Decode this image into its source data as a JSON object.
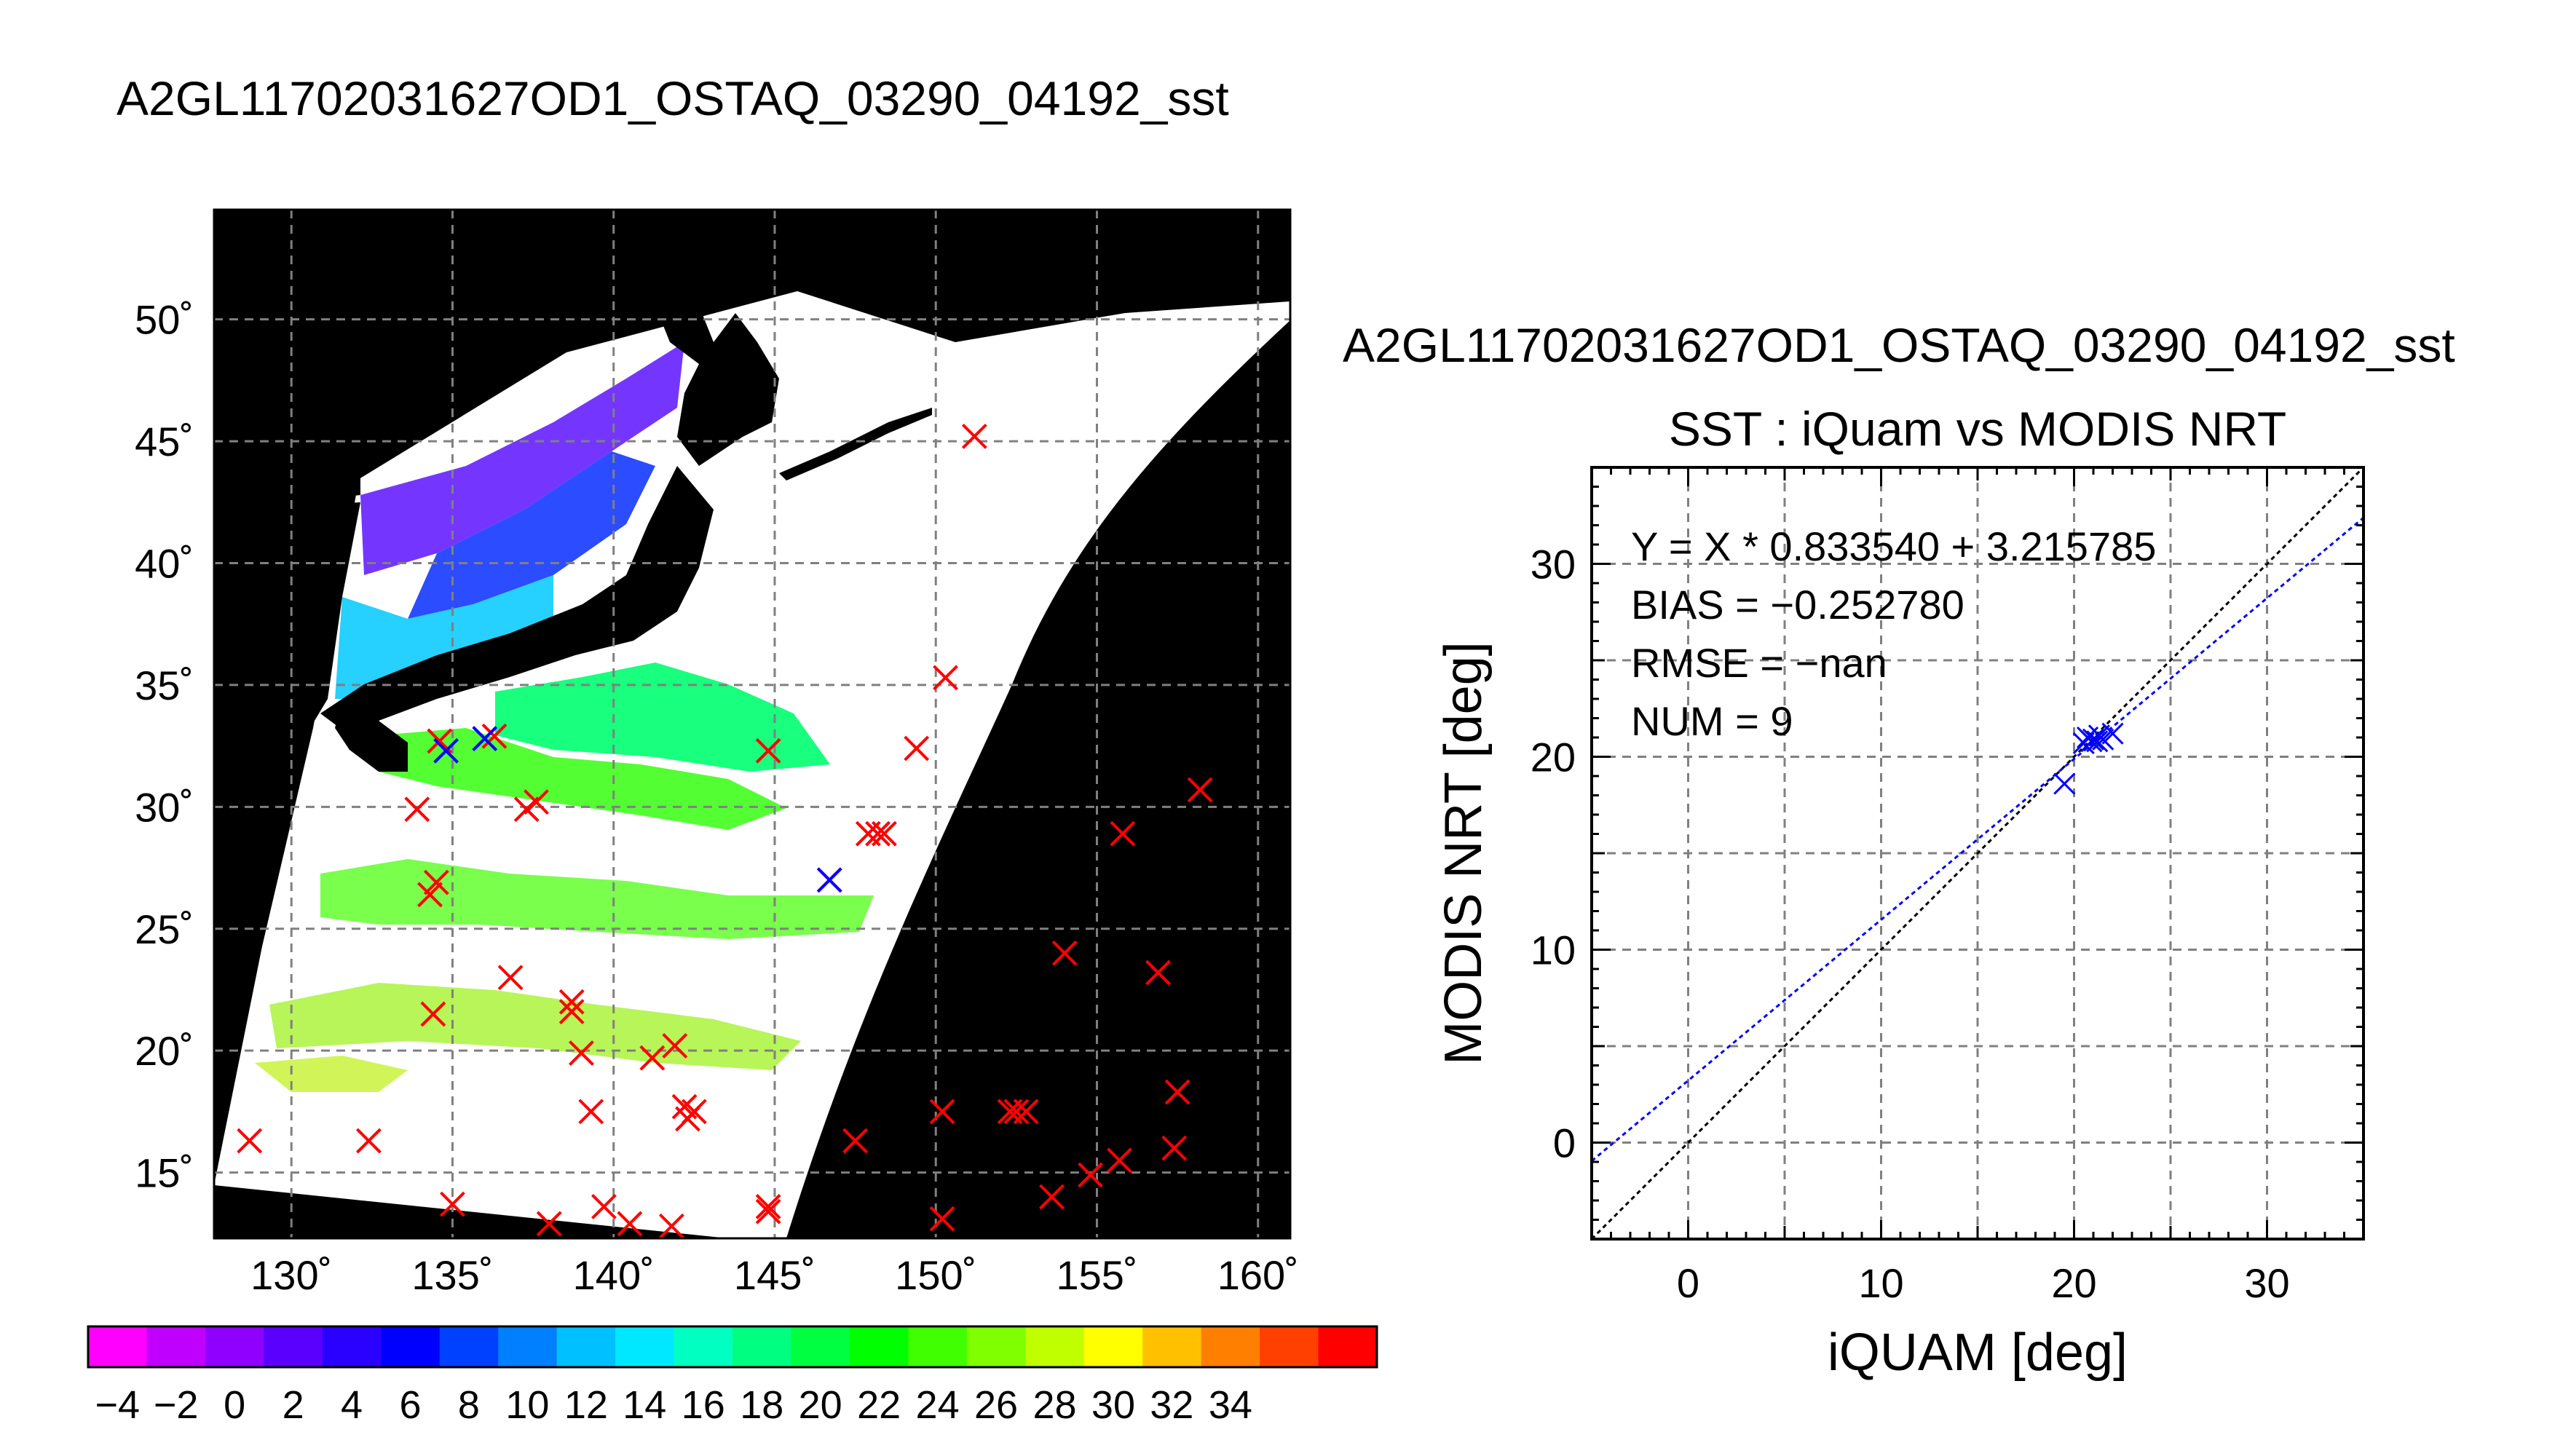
{
  "main_title": "A2GL11702031627OD1_OSTAQ_03290_04192_sst",
  "chart_data": [
    {
      "type": "scatter",
      "subtype": "map",
      "lon_ticks": [
        "130˚",
        "135˚",
        "140˚",
        "145˚",
        "150˚",
        "155˚",
        "160˚"
      ],
      "lon_tick_values": [
        130,
        135,
        140,
        145,
        150,
        155,
        160
      ],
      "lat_ticks": [
        "50˚",
        "45˚",
        "40˚",
        "35˚",
        "30˚",
        "25˚",
        "20˚",
        "15˚"
      ],
      "lat_tick_values": [
        50,
        45,
        40,
        35,
        30,
        25,
        20,
        15
      ],
      "xlim": [
        127.6,
        161.0
      ],
      "ylim": [
        12.3,
        54.5
      ],
      "grid": true,
      "red_markers": [
        [
          128.7,
          16.3
        ],
        [
          132.4,
          16.3
        ],
        [
          133.9,
          29.9
        ],
        [
          134.6,
          32.7
        ],
        [
          134.5,
          26.9
        ],
        [
          134.3,
          26.4
        ],
        [
          134.4,
          21.5
        ],
        [
          135.0,
          13.7
        ],
        [
          136.3,
          32.9
        ],
        [
          136.8,
          23.0
        ],
        [
          137.3,
          29.9
        ],
        [
          137.6,
          30.2
        ],
        [
          138.0,
          12.9
        ],
        [
          138.7,
          22.0
        ],
        [
          138.7,
          21.6
        ],
        [
          139.0,
          19.9
        ],
        [
          139.3,
          17.5
        ],
        [
          139.7,
          13.6
        ],
        [
          140.5,
          12.9
        ],
        [
          141.2,
          19.7
        ],
        [
          141.9,
          20.2
        ],
        [
          141.8,
          12.8
        ],
        [
          142.2,
          17.7
        ],
        [
          142.3,
          17.2
        ],
        [
          142.5,
          17.5
        ],
        [
          144.8,
          32.3
        ],
        [
          144.8,
          13.6
        ],
        [
          144.8,
          13.4
        ],
        [
          146.7,
          27.0
        ],
        [
          147.5,
          16.3
        ],
        [
          147.9,
          28.9
        ],
        [
          148.2,
          28.9
        ],
        [
          148.4,
          28.9
        ],
        [
          149.4,
          32.4
        ],
        [
          150.2,
          17.5
        ],
        [
          150.2,
          13.1
        ],
        [
          150.3,
          35.3
        ],
        [
          151.2,
          45.2
        ],
        [
          152.3,
          17.5
        ],
        [
          152.5,
          17.5
        ],
        [
          152.8,
          17.5
        ],
        [
          153.6,
          14.0
        ],
        [
          154.0,
          24.0
        ],
        [
          154.8,
          14.9
        ],
        [
          155.7,
          15.5
        ],
        [
          155.8,
          28.9
        ],
        [
          156.9,
          23.2
        ],
        [
          157.4,
          16.0
        ],
        [
          157.5,
          18.3
        ],
        [
          158.2,
          30.7
        ]
      ],
      "blue_markers": [
        [
          134.8,
          32.3
        ],
        [
          136.0,
          32.8
        ],
        [
          146.7,
          27.0
        ]
      ]
    },
    {
      "type": "scatter",
      "title": "A2GL11702031627OD1_OSTAQ_03290_04192_sst",
      "subtitle": "SST : iQuam vs MODIS NRT",
      "xlabel": "iQUAM [deg]",
      "ylabel": "MODIS NRT [deg]",
      "xlim": [
        -5,
        35
      ],
      "ylim": [
        -5,
        35
      ],
      "x_ticks": [
        "0",
        "10",
        "20",
        "30"
      ],
      "x_tick_values": [
        0,
        10,
        20,
        30
      ],
      "y_ticks": [
        "0",
        "10",
        "20",
        "30"
      ],
      "y_tick_values": [
        0,
        10,
        20,
        30
      ],
      "grid": true,
      "annotations": [
        "Y = X * 0.833540 + 3.215785",
        "BIAS = −0.252780",
        "RMSE = −nan",
        "NUM = 9"
      ],
      "points": [
        [
          19.5,
          18.6
        ],
        [
          20.5,
          20.7
        ],
        [
          20.7,
          21.0
        ],
        [
          20.9,
          20.8
        ],
        [
          21.0,
          20.9
        ],
        [
          21.2,
          20.8
        ],
        [
          21.3,
          21.1
        ],
        [
          21.5,
          20.9
        ],
        [
          22.0,
          21.2
        ]
      ],
      "fit": {
        "slope": 0.83354,
        "intercept": 3.215785,
        "color": "#0000ff"
      },
      "identity_line_color": "#000000",
      "marker_color": "#0000ff"
    },
    {
      "type": "heatmap",
      "subtype": "colorbar",
      "tick_labels": [
        "−4",
        "−2",
        "0",
        "2",
        "4",
        "6",
        "8",
        "10",
        "12",
        "14",
        "16",
        "18",
        "20",
        "22",
        "24",
        "26",
        "28",
        "30",
        "32",
        "34"
      ],
      "tick_values": [
        -4,
        -2,
        0,
        2,
        4,
        6,
        8,
        10,
        12,
        14,
        16,
        18,
        20,
        22,
        24,
        26,
        28,
        30,
        32,
        34
      ],
      "colors": [
        "#ff00ff",
        "#c000ff",
        "#9000ff",
        "#5a00ff",
        "#2a00ff",
        "#0000ff",
        "#0040ff",
        "#0080ff",
        "#00c0ff",
        "#00e8ff",
        "#00ffc0",
        "#00ff80",
        "#00ff40",
        "#00ff00",
        "#40ff00",
        "#80ff00",
        "#c0ff00",
        "#ffff00",
        "#ffc000",
        "#ff8000",
        "#ff4000",
        "#ff0000"
      ]
    }
  ],
  "colors": {
    "red_marker": "#ff0000",
    "blue_marker": "#0000ff",
    "land": "#000000",
    "nodata": "#ffffff"
  }
}
